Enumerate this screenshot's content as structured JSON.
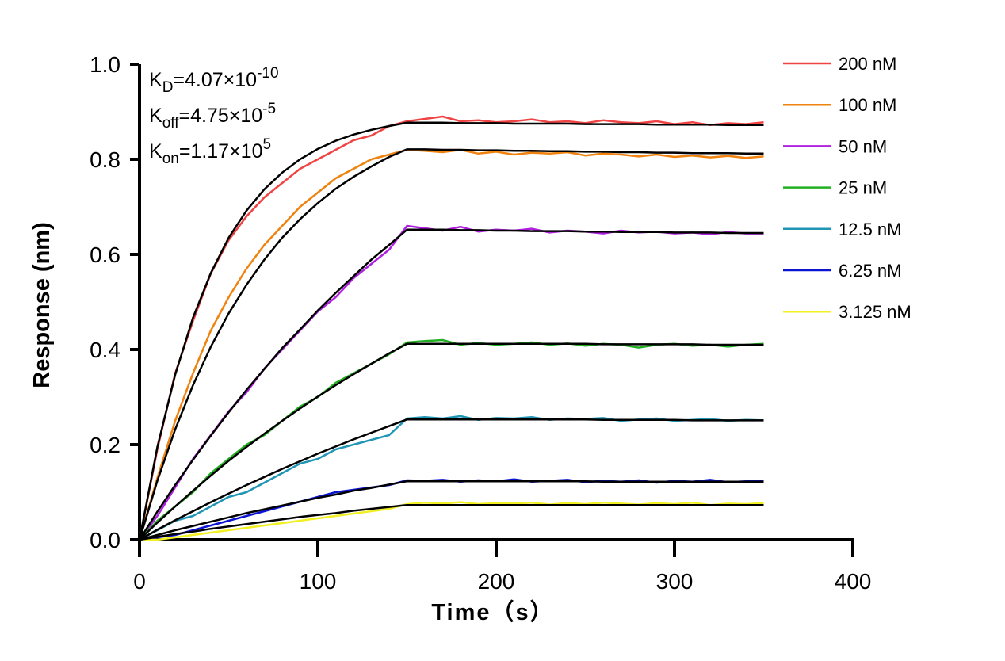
{
  "chart_data": {
    "type": "line",
    "x_label": "Time（s）",
    "y_label": "Response (nm)",
    "annotations": [
      {
        "base": "K",
        "sub": "D",
        "text": "=4.07×10",
        "sup": "-10"
      },
      {
        "base": "K",
        "sub": "off",
        "text": "=4.75×10",
        "sup": "-5"
      },
      {
        "base": "K",
        "sub": "on",
        "text": "=1.17×10",
        "sup": "5"
      }
    ],
    "xlim": [
      0,
      400
    ],
    "xticks": [
      0,
      100,
      200,
      300,
      400
    ],
    "ylim": [
      0,
      1
    ],
    "yticks": [
      {
        "value": 0,
        "label": "0.0"
      },
      {
        "value": 0.2,
        "label": "0.2"
      },
      {
        "value": 0.4,
        "label": "0.4"
      },
      {
        "value": 0.6,
        "label": "0.6"
      },
      {
        "value": 0.8,
        "label": "0.8"
      },
      {
        "value": 1,
        "label": "1.0"
      }
    ],
    "fit_color": "#000000",
    "x": [
      0,
      10,
      20,
      30,
      40,
      50,
      60,
      70,
      80,
      90,
      100,
      110,
      120,
      130,
      140,
      150,
      160,
      170,
      180,
      190,
      200,
      210,
      220,
      230,
      240,
      250,
      260,
      270,
      280,
      290,
      300,
      310,
      320,
      330,
      340,
      350
    ],
    "series": [
      {
        "name": "200 nM",
        "color": "#f04444",
        "values": [
          0,
          0.19,
          0.35,
          0.46,
          0.56,
          0.63,
          0.68,
          0.72,
          0.75,
          0.78,
          0.8,
          0.82,
          0.84,
          0.85,
          0.87,
          0.88,
          0.885,
          0.89,
          0.88,
          0.882,
          0.878,
          0.88,
          0.884,
          0.878,
          0.88,
          0.876,
          0.882,
          0.878,
          0.876,
          0.88,
          0.874,
          0.878,
          0.872,
          0.876,
          0.874,
          0.878
        ],
        "fit_values": [
          0,
          0.195,
          0.347,
          0.467,
          0.561,
          0.635,
          0.692,
          0.737,
          0.772,
          0.8,
          0.822,
          0.839,
          0.852,
          0.862,
          0.87,
          0.877,
          0.877,
          0.877,
          0.876,
          0.876,
          0.876,
          0.875,
          0.875,
          0.875,
          0.875,
          0.874,
          0.874,
          0.874,
          0.874,
          0.873,
          0.873,
          0.873,
          0.873,
          0.872,
          0.872,
          0.872
        ]
      },
      {
        "name": "100 nM",
        "color": "#f0820e",
        "values": [
          0,
          0.13,
          0.25,
          0.35,
          0.44,
          0.51,
          0.57,
          0.62,
          0.66,
          0.7,
          0.73,
          0.76,
          0.78,
          0.8,
          0.81,
          0.82,
          0.818,
          0.815,
          0.82,
          0.812,
          0.816,
          0.81,
          0.814,
          0.812,
          0.815,
          0.808,
          0.812,
          0.81,
          0.806,
          0.81,
          0.805,
          0.808,
          0.804,
          0.807,
          0.803,
          0.806
        ],
        "fit_values": [
          0,
          0.124,
          0.232,
          0.325,
          0.406,
          0.476,
          0.536,
          0.589,
          0.635,
          0.674,
          0.708,
          0.738,
          0.763,
          0.785,
          0.805,
          0.821,
          0.821,
          0.82,
          0.82,
          0.819,
          0.819,
          0.818,
          0.818,
          0.817,
          0.817,
          0.816,
          0.816,
          0.815,
          0.815,
          0.814,
          0.814,
          0.813,
          0.813,
          0.813,
          0.812,
          0.812
        ]
      },
      {
        "name": "50 nM",
        "color": "#b020e0",
        "values": [
          0,
          0.05,
          0.11,
          0.17,
          0.22,
          0.27,
          0.31,
          0.36,
          0.4,
          0.44,
          0.48,
          0.51,
          0.55,
          0.58,
          0.61,
          0.66,
          0.655,
          0.65,
          0.658,
          0.648,
          0.652,
          0.65,
          0.654,
          0.646,
          0.65,
          0.648,
          0.644,
          0.65,
          0.646,
          0.648,
          0.644,
          0.646,
          0.642,
          0.647,
          0.644,
          0.644
        ],
        "fit_values": [
          0,
          0.059,
          0.115,
          0.168,
          0.219,
          0.268,
          0.315,
          0.359,
          0.403,
          0.442,
          0.482,
          0.519,
          0.554,
          0.589,
          0.62,
          0.652,
          0.652,
          0.652,
          0.651,
          0.651,
          0.65,
          0.65,
          0.649,
          0.649,
          0.649,
          0.648,
          0.648,
          0.647,
          0.647,
          0.647,
          0.646,
          0.646,
          0.646,
          0.645,
          0.645,
          0.645
        ]
      },
      {
        "name": "25 nM",
        "color": "#22b022",
        "values": [
          0,
          0.04,
          0.07,
          0.1,
          0.14,
          0.17,
          0.2,
          0.22,
          0.25,
          0.28,
          0.3,
          0.33,
          0.35,
          0.37,
          0.39,
          0.415,
          0.418,
          0.42,
          0.41,
          0.414,
          0.41,
          0.412,
          0.415,
          0.41,
          0.413,
          0.408,
          0.412,
          0.41,
          0.404,
          0.41,
          0.412,
          0.408,
          0.41,
          0.406,
          0.41,
          0.412
        ],
        "fit_values": [
          0,
          0.036,
          0.07,
          0.103,
          0.135,
          0.166,
          0.195,
          0.223,
          0.25,
          0.276,
          0.301,
          0.325,
          0.348,
          0.37,
          0.392,
          0.412,
          0.412,
          0.412,
          0.412,
          0.412,
          0.412,
          0.412,
          0.412,
          0.412,
          0.412,
          0.412,
          0.411,
          0.411,
          0.411,
          0.411,
          0.411,
          0.411,
          0.41,
          0.41,
          0.41,
          0.41
        ]
      },
      {
        "name": "12.5 nM",
        "color": "#2096b4",
        "values": [
          0,
          0.02,
          0.04,
          0.05,
          0.07,
          0.09,
          0.1,
          0.12,
          0.14,
          0.16,
          0.17,
          0.19,
          0.2,
          0.21,
          0.22,
          0.255,
          0.258,
          0.255,
          0.26,
          0.252,
          0.256,
          0.255,
          0.258,
          0.252,
          0.255,
          0.254,
          0.256,
          0.25,
          0.253,
          0.255,
          0.25,
          0.252,
          0.254,
          0.25,
          0.252,
          0.251
        ],
        "fit_values": [
          0,
          0.021,
          0.041,
          0.06,
          0.079,
          0.097,
          0.115,
          0.132,
          0.149,
          0.165,
          0.181,
          0.196,
          0.211,
          0.225,
          0.239,
          0.253,
          0.253,
          0.253,
          0.253,
          0.253,
          0.253,
          0.253,
          0.253,
          0.253,
          0.253,
          0.253,
          0.252,
          0.252,
          0.252,
          0.252,
          0.252,
          0.251,
          0.251,
          0.251,
          0.251,
          0.251
        ]
      },
      {
        "name": "6.25 nM",
        "color": "#0a14d2",
        "values": [
          0,
          0.005,
          0.01,
          0.02,
          0.03,
          0.04,
          0.05,
          0.06,
          0.07,
          0.08,
          0.09,
          0.1,
          0.105,
          0.11,
          0.115,
          0.125,
          0.124,
          0.126,
          0.122,
          0.125,
          0.123,
          0.127,
          0.122,
          0.124,
          0.126,
          0.121,
          0.124,
          0.122,
          0.125,
          0.12,
          0.124,
          0.122,
          0.126,
          0.121,
          0.123,
          0.124
        ],
        "fit_values": [
          0,
          0.01,
          0.02,
          0.029,
          0.038,
          0.047,
          0.056,
          0.064,
          0.072,
          0.08,
          0.088,
          0.095,
          0.103,
          0.109,
          0.116,
          0.123,
          0.123,
          0.123,
          0.123,
          0.123,
          0.123,
          0.123,
          0.123,
          0.123,
          0.123,
          0.123,
          0.122,
          0.122,
          0.122,
          0.122,
          0.122,
          0.122,
          0.122,
          0.122,
          0.122,
          0.122
        ]
      },
      {
        "name": "3.125 nM",
        "color": "#f2f022",
        "values": [
          0,
          0,
          0.005,
          0.01,
          0.015,
          0.02,
          0.025,
          0.03,
          0.035,
          0.04,
          0.045,
          0.05,
          0.055,
          0.06,
          0.065,
          0.075,
          0.078,
          0.076,
          0.079,
          0.075,
          0.077,
          0.076,
          0.078,
          0.074,
          0.077,
          0.075,
          0.078,
          0.076,
          0.074,
          0.077,
          0.075,
          0.078,
          0.073,
          0.076,
          0.075,
          0.077
        ],
        "fit_values": [
          0,
          0.006,
          0.012,
          0.017,
          0.023,
          0.028,
          0.033,
          0.038,
          0.043,
          0.048,
          0.052,
          0.056,
          0.061,
          0.065,
          0.069,
          0.073,
          0.073,
          0.073,
          0.073,
          0.073,
          0.073,
          0.073,
          0.073,
          0.073,
          0.073,
          0.073,
          0.073,
          0.073,
          0.073,
          0.073,
          0.073,
          0.073,
          0.073,
          0.073,
          0.073,
          0.073
        ]
      }
    ]
  }
}
